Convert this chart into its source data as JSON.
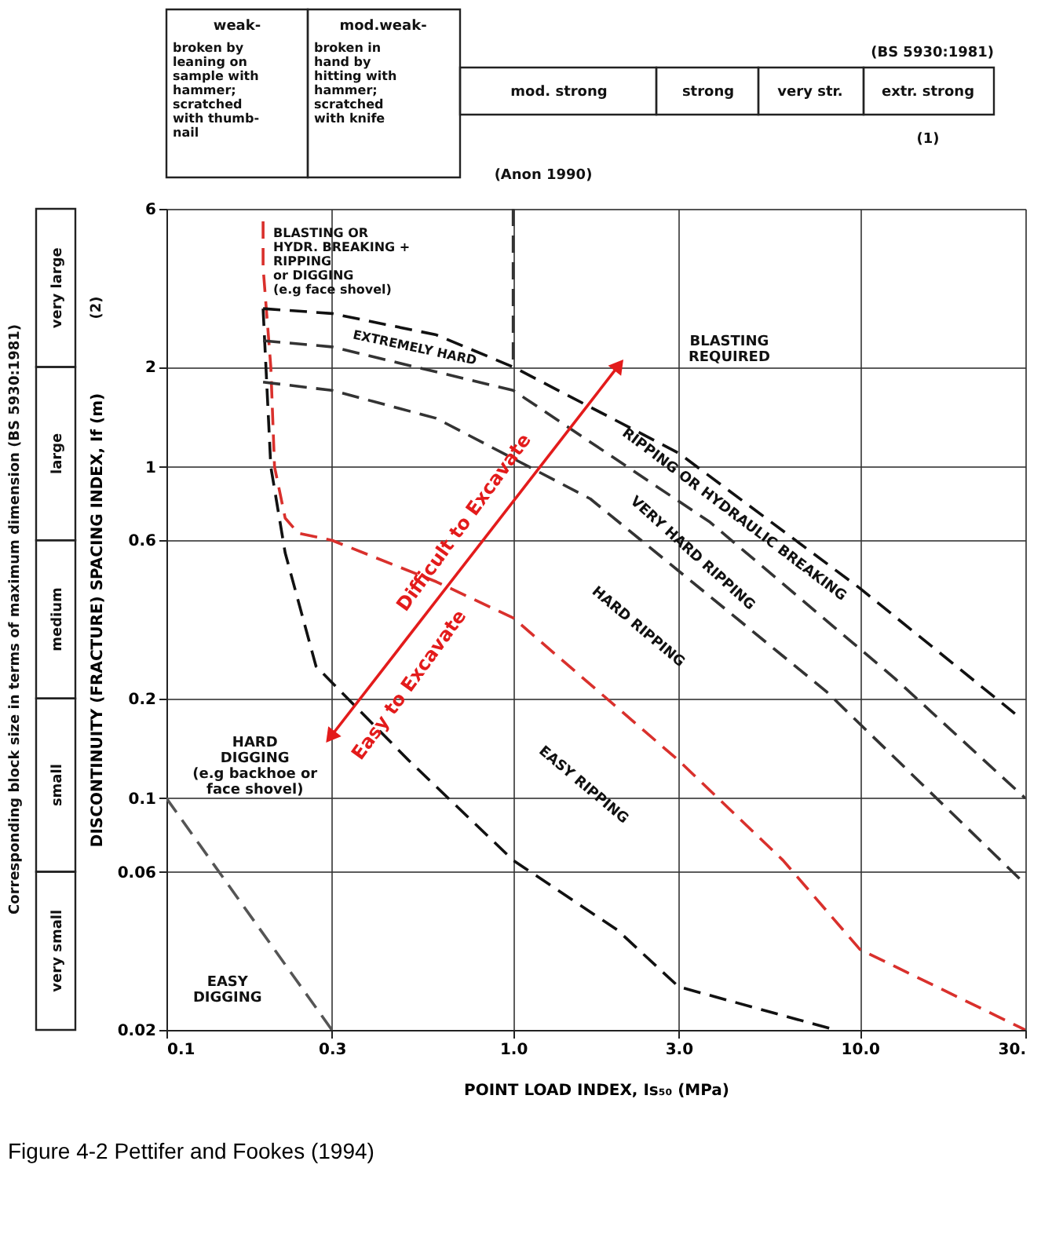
{
  "chart_data": {
    "type": "line",
    "title": "Figure 4-2 Pettifer and Fookes (1994)",
    "xlabel": "POINT LOAD INDEX, Is₅₀      (MPa)",
    "ylabel": "DISCONTINUITY (FRACTURE) SPACING INDEX, If  (m)",
    "log": "xy",
    "xlim": [
      0.1,
      30
    ],
    "xticks": [
      0.1,
      0.3,
      {
        "value": 1,
        "label": "1.0"
      },
      {
        "value": 3,
        "label": "3.0"
      },
      {
        "value": 10,
        "label": "10.0"
      },
      {
        "value": 30,
        "label": "30."
      }
    ],
    "ylim": [
      0.02,
      6
    ],
    "yticks": [
      6,
      2,
      1,
      0.6,
      0.2,
      0.1,
      0.06,
      0.02
    ],
    "grid": true,
    "marker": "none",
    "series": [
      {
        "color": "#d9302c",
        "line_style": "dashed",
        "x": [
          0.19,
          0.19,
          0.2,
          0.205,
          0.22,
          0.24,
          0.3,
          0.6,
          1,
          3,
          6,
          10,
          30
        ],
        "values": [
          5.5,
          4,
          2,
          1,
          0.7,
          0.63,
          0.6,
          0.45,
          0.35,
          0.13,
          0.065,
          0.035,
          0.02
        ]
      },
      {
        "color": "#111111",
        "line_style": "dashed",
        "x": [
          0.19,
          0.2,
          0.22,
          0.27,
          0.5,
          1,
          2,
          3,
          8.5
        ],
        "values": [
          3,
          1,
          0.55,
          0.25,
          0.13,
          0.065,
          0.04,
          0.027,
          0.02
        ]
      },
      {
        "color": "#111111",
        "line_style": "dashed",
        "x": [
          0.19,
          0.3,
          0.6,
          1,
          3,
          10,
          28
        ],
        "values": [
          3,
          2.9,
          2.5,
          2,
          1.1,
          0.43,
          0.18
        ]
      },
      {
        "color": "#333333",
        "line_style": "dashed",
        "x": [
          0.19,
          0.3,
          1,
          3.7,
          12.6,
          30
        ],
        "values": [
          2.4,
          2.3,
          1.7,
          0.68,
          0.23,
          0.1
        ]
      },
      {
        "color": "#333333",
        "line_style": "dashed",
        "x": [
          0.19,
          0.3,
          0.6,
          1.67,
          8,
          30
        ],
        "values": [
          1.8,
          1.7,
          1.4,
          0.8,
          0.21,
          0.055
        ]
      },
      {
        "color": "#555555",
        "line_style": "dashed",
        "x": [
          0.1,
          0.3
        ],
        "values": [
          0.1,
          0.02
        ]
      },
      {
        "color": "#333333",
        "line_style": "dashed",
        "x": [
          1,
          1
        ],
        "values": [
          6,
          2
        ]
      },
      {
        "color": "#e31b1b",
        "line_style": "solid",
        "marker": "triangle",
        "x": [
          0.3,
          2
        ],
        "values": [
          0.155,
          2
        ]
      }
    ],
    "annotations": [
      "weak-",
      "broken by\nleaning on\nsample with\nhammer;\nscratched\nwith thumb-\nnail",
      "mod.weak-",
      "broken in\nhand by\nhitting with\nhammer;\nscratched\nwith knife",
      "mod. strong",
      "strong",
      "very str.",
      "extr. strong",
      "(BS 5930:1981)",
      "(1)",
      "(Anon 1990)",
      "Corresponding block size in terms of maximum dimension (BS 5930:1981)",
      "very large",
      "large",
      "medium",
      "small",
      "very small",
      "(2)",
      "BLASTING    OR\nHYDR. BREAKING +\nRIPPING\nor DIGGING\n(e.g face shovel)",
      "BLASTING\nREQUIRED",
      "EXTREMELY HARD",
      "RIPPING OR HYDRAULIC BREAKING",
      "VERY HARD RIPPING",
      "HARD RIPPING",
      "EASY RIPPING",
      "HARD\nDIGGING\n(e.g backhoe or\nface shovel)",
      "EASY\nDIGGING",
      "Difficult to Excavate",
      "Easy to Excavate"
    ]
  }
}
